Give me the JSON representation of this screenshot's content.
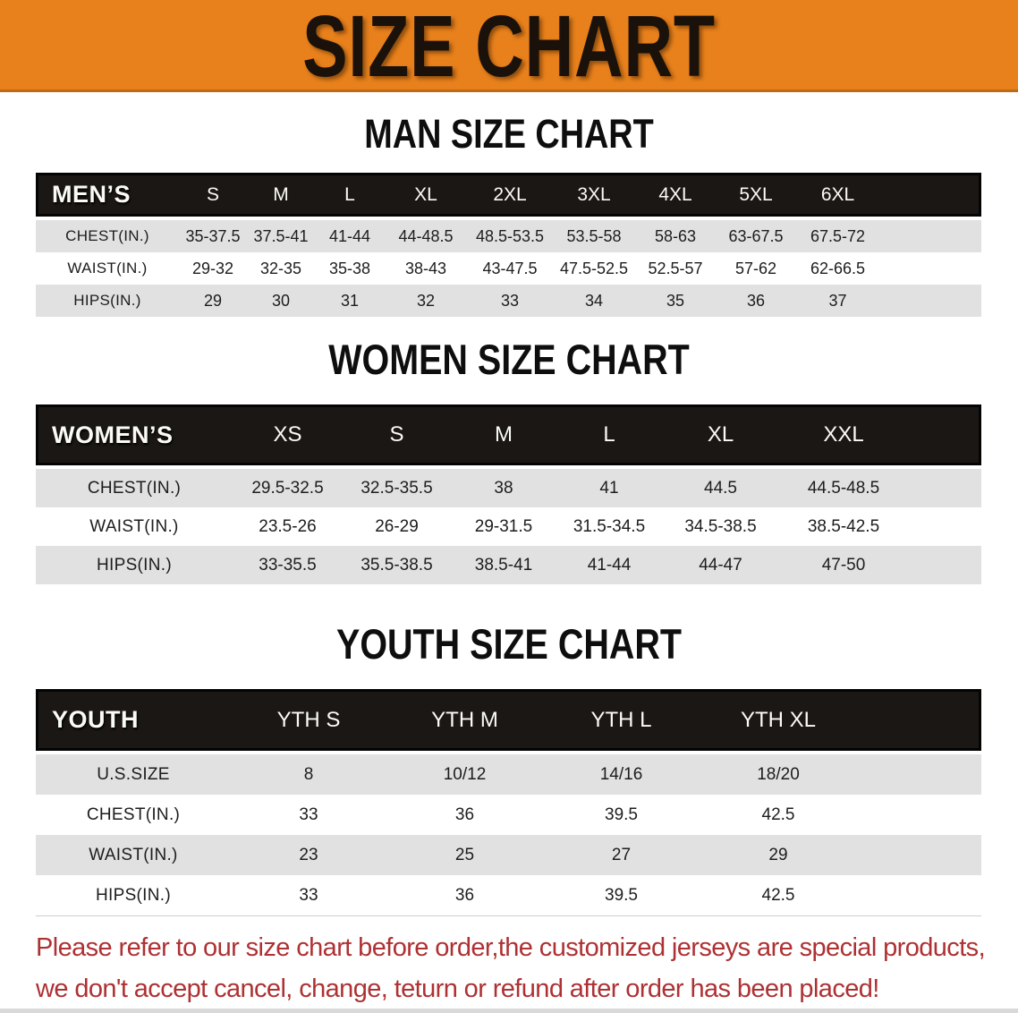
{
  "banner": {
    "title": "SIZE CHART",
    "bg_color": "#E8801B",
    "text_color": "#1A120A"
  },
  "sections": [
    {
      "id": "men",
      "title": "MAN SIZE CHART",
      "corner_label": "MEN’S",
      "columns": [
        "S",
        "M",
        "L",
        "XL",
        "2XL",
        "3XL",
        "4XL",
        "5XL",
        "6XL"
      ],
      "rows": [
        {
          "label": "CHEST(IN.)",
          "values": [
            "35-37.5",
            "37.5-41",
            "41-44",
            "44-48.5",
            "48.5-53.5",
            "53.5-58",
            "58-63",
            "63-67.5",
            "67.5-72"
          ]
        },
        {
          "label": "WAIST(IN.)",
          "values": [
            "29-32",
            "32-35",
            "35-38",
            "38-43",
            "43-47.5",
            "47.5-52.5",
            "52.5-57",
            "57-62",
            "62-66.5"
          ]
        },
        {
          "label": "HIPS(IN.)",
          "values": [
            "29",
            "30",
            "31",
            "32",
            "33",
            "34",
            "35",
            "36",
            "37"
          ]
        }
      ]
    },
    {
      "id": "women",
      "title": "WOMEN SIZE CHART",
      "corner_label": "WOMEN’S",
      "columns": [
        "XS",
        "S",
        "M",
        "L",
        "XL",
        "XXL"
      ],
      "rows": [
        {
          "label": "CHEST(IN.)",
          "values": [
            "29.5-32.5",
            "32.5-35.5",
            "38",
            "41",
            "44.5",
            "44.5-48.5"
          ]
        },
        {
          "label": "WAIST(IN.)",
          "values": [
            "23.5-26",
            "26-29",
            "29-31.5",
            "31.5-34.5",
            "34.5-38.5",
            "38.5-42.5"
          ]
        },
        {
          "label": "HIPS(IN.)",
          "values": [
            "33-35.5",
            "35.5-38.5",
            "38.5-41",
            "41-44",
            "44-47",
            "47-50"
          ]
        }
      ]
    },
    {
      "id": "youth",
      "title": "YOUTH SIZE CHART",
      "corner_label": "YOUTH",
      "columns": [
        "YTH S",
        "YTH M",
        "YTH L",
        "YTH XL"
      ],
      "rows": [
        {
          "label": "U.S.SIZE",
          "values": [
            "8",
            "10/12",
            "14/16",
            "18/20"
          ]
        },
        {
          "label": "CHEST(IN.)",
          "values": [
            "33",
            "36",
            "39.5",
            "42.5"
          ]
        },
        {
          "label": "WAIST(IN.)",
          "values": [
            "23",
            "25",
            "27",
            "29"
          ]
        },
        {
          "label": "HIPS(IN.)",
          "values": [
            "33",
            "36",
            "39.5",
            "42.5"
          ]
        }
      ]
    }
  ],
  "disclaimer": {
    "line1": "Please refer to our size chart before order,the customized jerseys are special products,",
    "line2": "we don't accept cancel, change, teturn or refund after order has been placed!",
    "color": "#AE3133"
  }
}
